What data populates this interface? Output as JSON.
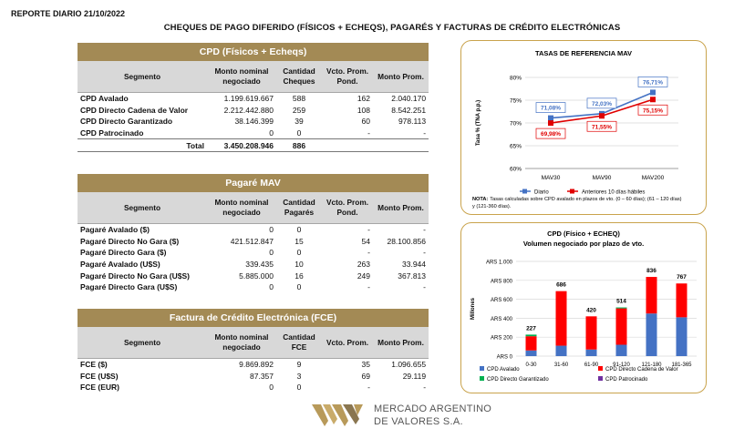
{
  "report_label": "REPORTE DIARIO  21/10/2022",
  "page_title": "CHEQUES DE PAGO DIFERIDO (FÍSICOS + ECHEQS), PAGARÉS Y FACTURAS DE CRÉDITO ELECTRÓNICAS",
  "cpd": {
    "title": "CPD (Físicos + Echeqs)",
    "headers": [
      "Segmento",
      "Monto nominal negociado",
      "Cantidad Cheques",
      "Vcto. Prom. Pond.",
      "Monto Prom."
    ],
    "rows": [
      [
        "CPD Avalado",
        "1.199.619.667",
        "588",
        "162",
        "2.040.170"
      ],
      [
        "CPD Directo Cadena de Valor",
        "2.212.442.880",
        "259",
        "108",
        "8.542.251"
      ],
      [
        "CPD Directo Garantizado",
        "38.146.399",
        "39",
        "60",
        "978.113"
      ],
      [
        "CPD Patrocinado",
        "0",
        "0",
        "-",
        "-"
      ]
    ],
    "total": [
      "Total",
      "3.450.208.946",
      "886",
      "",
      ""
    ]
  },
  "pagare": {
    "title": "Pagaré MAV",
    "headers": [
      "Segmento",
      "Monto nominal negociado",
      "Cantidad Pagarés",
      "Vcto. Prom. Pond.",
      "Monto Prom."
    ],
    "rows": [
      [
        "Pagaré Avalado ($)",
        "0",
        "0",
        "-",
        "-"
      ],
      [
        "Pagaré Directo No Gara ($)",
        "421.512.847",
        "15",
        "54",
        "28.100.856"
      ],
      [
        "Pagaré Directo Gara ($)",
        "0",
        "0",
        "-",
        "-"
      ],
      [
        "Pagaré Avalado (U$S)",
        "339.435",
        "10",
        "263",
        "33.944"
      ],
      [
        "Pagaré Directo No Gara (U$S)",
        "5.885.000",
        "16",
        "249",
        "367.813"
      ],
      [
        "Pagaré Directo Gara (U$S)",
        "0",
        "0",
        "-",
        "-"
      ]
    ]
  },
  "fce": {
    "title": "Factura de Crédito Electrónica (FCE)",
    "headers": [
      "Segmento",
      "Monto nominal negociado",
      "Cantidad FCE",
      "Vcto. Prom.",
      "Monto Prom."
    ],
    "rows": [
      [
        "FCE ($)",
        "9.869.892",
        "9",
        "35",
        "1.096.655"
      ],
      [
        "FCE (U$S)",
        "87.357",
        "3",
        "69",
        "29.119"
      ],
      [
        "FCE (EUR)",
        "0",
        "0",
        "-",
        "-"
      ]
    ]
  },
  "chart_data": [
    {
      "type": "line",
      "title": "TASAS DE REFERENCIA MAV",
      "ylabel": "Tasa % (TNA p.p.)",
      "categories": [
        "MAV30",
        "MAV90",
        "MAV200"
      ],
      "ylim": [
        60,
        80
      ],
      "yticks": [
        "60%",
        "65%",
        "70%",
        "75%",
        "80%"
      ],
      "series": [
        {
          "name": "Diario",
          "color": "#4472c4",
          "values": [
            71.08,
            72.03,
            76.71
          ],
          "labels": [
            "71,08%",
            "72,03%",
            "76,71%"
          ]
        },
        {
          "name": "Anteriores 10 días hábiles",
          "color": "#e00000",
          "values": [
            69.98,
            71.55,
            75.15
          ],
          "labels": [
            "69,98%",
            "71,55%",
            "75,15%"
          ]
        }
      ],
      "note_label": "NOTA:",
      "note": "Tasas calculadas sobre CPD avalado en plazos de vto. (0 – 60 días); (61 – 120 días) y (121-360 días)."
    },
    {
      "type": "bar",
      "title": "CPD (Físico + ECHEQ)",
      "subtitle": "Volumen negociado por plazo de vto.",
      "ylabel": "Millones",
      "categories": [
        "0-30",
        "31-60",
        "61-90",
        "91-120",
        "121-180",
        "181-365"
      ],
      "ylim": [
        0,
        1000
      ],
      "yticks": [
        "ARS 0",
        "ARS 200",
        "ARS 400",
        "ARS 600",
        "ARS 800",
        "ARS 1.000"
      ],
      "totals": [
        227,
        686,
        420,
        514,
        836,
        767
      ],
      "total_labels": [
        "227",
        "686",
        "420",
        "514",
        "836",
        "767"
      ],
      "series": [
        {
          "name": "CPD Avalado",
          "color": "#4472c4",
          "values": [
            60,
            110,
            70,
            120,
            450,
            410
          ]
        },
        {
          "name": "CPD Directo Cadena de Valor",
          "color": "#ff0000",
          "values": [
            150,
            576,
            350,
            384,
            386,
            357
          ]
        },
        {
          "name": "CPD Directo Garantizado",
          "color": "#00b050",
          "values": [
            17,
            0,
            0,
            10,
            0,
            0
          ]
        },
        {
          "name": "CPD Patrocinado",
          "color": "#7030a0",
          "values": [
            0,
            0,
            0,
            0,
            0,
            0
          ]
        }
      ]
    }
  ],
  "logo": {
    "line1": "MERCADO ARGENTINO",
    "line2": "DE VALORES S.A."
  },
  "colors": {
    "section_header": "#a38a55",
    "panel_border": "#c9a34c"
  }
}
